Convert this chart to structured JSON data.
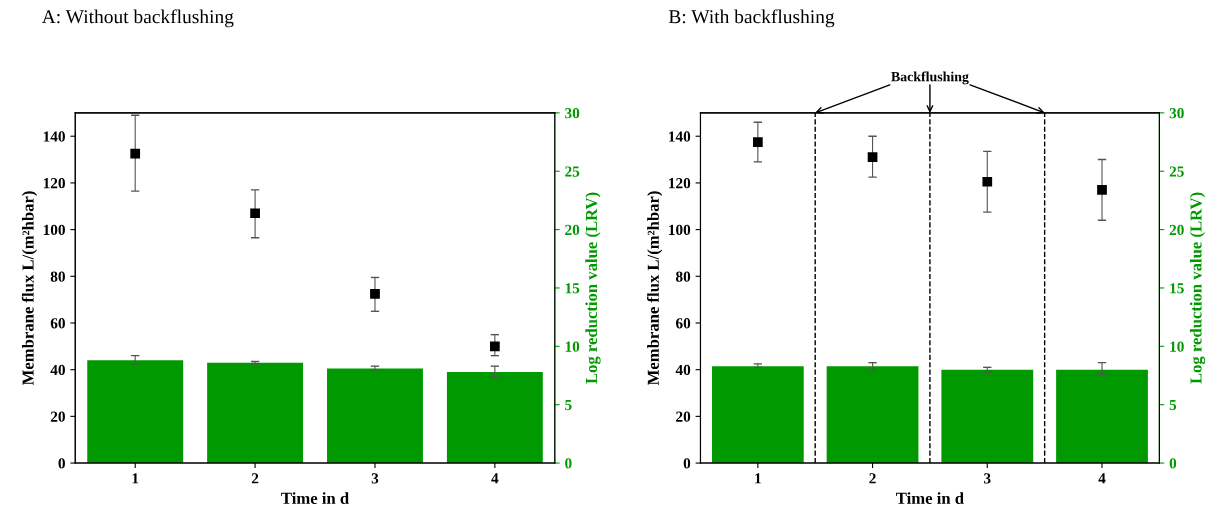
{
  "chart_data": [
    {
      "type": "bar",
      "title": "A: Without backflushing",
      "xlabel": "Time in d",
      "ylabel": "Membrane flux L/(m²hbar)",
      "y2label": "Log reduction value (LRV)",
      "x": [
        1,
        2,
        3,
        4
      ],
      "xlim": [
        0.5,
        4.5
      ],
      "xticks": [
        1,
        2,
        3,
        4
      ],
      "ylim": [
        0,
        150
      ],
      "yticks": [
        0,
        20,
        40,
        60,
        80,
        100,
        120,
        140
      ],
      "y2lim": [
        0,
        30
      ],
      "y2ticks": [
        0,
        5,
        10,
        15,
        20,
        25,
        30
      ],
      "grid": false,
      "series": [
        {
          "axis": "y2",
          "color": "#009900",
          "values": [
            8.8,
            8.6,
            8.1,
            7.8
          ],
          "errors": [
            [
              8.5,
              9.2
            ],
            [
              8.5,
              8.7
            ],
            [
              8.0,
              8.3
            ],
            [
              7.4,
              8.3
            ]
          ]
        },
        {
          "type": "scatter",
          "axis": "y",
          "color": "#000000",
          "marker": "square",
          "values": [
            132.5,
            107,
            72.5,
            50
          ],
          "errors": [
            [
              116.5,
              149
            ],
            [
              96.5,
              117
            ],
            [
              65,
              79.5
            ],
            [
              46,
              55
            ]
          ]
        }
      ]
    },
    {
      "type": "bar",
      "title": "B: With backflushing",
      "xlabel": "Time in d",
      "ylabel": "Membrane flux L/(m²hbar)",
      "y2label": "Log reduction value (LRV)",
      "x": [
        1,
        2,
        3,
        4
      ],
      "xlim": [
        0.5,
        4.5
      ],
      "xticks": [
        1,
        2,
        3,
        4
      ],
      "ylim": [
        0,
        150
      ],
      "yticks": [
        0,
        20,
        40,
        60,
        80,
        100,
        120,
        140
      ],
      "y2lim": [
        0,
        30
      ],
      "y2ticks": [
        0,
        5,
        10,
        15,
        20,
        25,
        30
      ],
      "grid": false,
      "series": [
        {
          "axis": "y2",
          "color": "#009900",
          "values": [
            8.3,
            8.3,
            8.0,
            8.0
          ],
          "errors": [
            [
              8.2,
              8.5
            ],
            [
              8.0,
              8.6
            ],
            [
              7.8,
              8.2
            ],
            [
              7.6,
              8.6
            ]
          ]
        },
        {
          "type": "scatter",
          "axis": "y",
          "color": "#000000",
          "marker": "square",
          "values": [
            137.5,
            131,
            120.5,
            117
          ],
          "errors": [
            [
              129,
              146
            ],
            [
              122.5,
              140
            ],
            [
              107.5,
              133.5
            ],
            [
              104,
              130
            ]
          ]
        }
      ],
      "ref_lines": [
        {
          "axis": "x",
          "value": 1.5,
          "color": "#000000",
          "line_style": "dashed"
        },
        {
          "axis": "x",
          "value": 2.5,
          "color": "#000000",
          "line_style": "dashed"
        },
        {
          "axis": "x",
          "value": 3.5,
          "color": "#000000",
          "line_style": "dashed"
        }
      ],
      "annotations": [
        "Backflushing"
      ]
    }
  ]
}
